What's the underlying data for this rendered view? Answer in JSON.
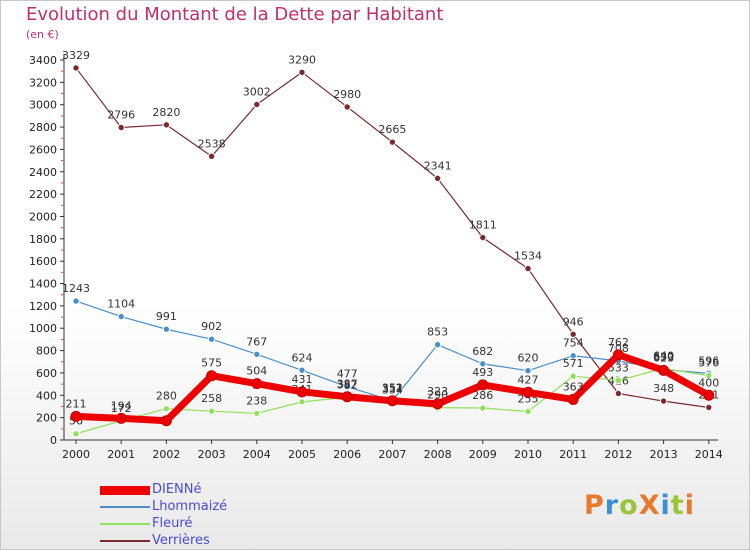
{
  "header": {
    "title": "Evolution du Montant de la Dette par Habitant",
    "subtitle": "(en €)"
  },
  "logo": {
    "text": "ProXiti",
    "colors": [
      "#e8792a",
      "#3a8fd6",
      "#9ac43a",
      "#e8792a",
      "#3a8fd6",
      "#9ac43a",
      "#e8792a"
    ]
  },
  "chart_data": {
    "type": "line",
    "title": "Evolution du Montant de la Dette par Habitant",
    "subtitle": "(en €)",
    "xlabel": "",
    "ylabel": "",
    "x": [
      "2000",
      "2001",
      "2002",
      "2003",
      "2004",
      "2005",
      "2006",
      "2007",
      "2008",
      "2009",
      "2010",
      "2011",
      "2012",
      "2013",
      "2014"
    ],
    "ylim": [
      0,
      3400
    ],
    "yticks": [
      0,
      200,
      400,
      600,
      800,
      1000,
      1200,
      1400,
      1600,
      1800,
      2000,
      2200,
      2400,
      2600,
      2800,
      3000,
      3200,
      3400
    ],
    "grid": false,
    "legend_position": "bottom-left",
    "series": [
      {
        "name": "Verrières",
        "color": "#7a2a2e",
        "width": 1.2,
        "values": [
          3329,
          2796,
          2820,
          2538,
          3002,
          3290,
          2980,
          2665,
          2341,
          1811,
          1534,
          946,
          416,
          348,
          291
        ],
        "labels": [
          "3329",
          "2796",
          "2820",
          "2538",
          "3002",
          "3290",
          "2980",
          "2665",
          "2341",
          "1811",
          "1534",
          "946",
          "416",
          "348",
          "291"
        ]
      },
      {
        "name": "Lhommaizé",
        "color": "#4a90c8",
        "width": 1.2,
        "values": [
          1243,
          1104,
          991,
          902,
          767,
          624,
          477,
          352,
          853,
          682,
          620,
          754,
          708,
          630,
          596
        ],
        "labels": [
          "1243",
          "1104",
          "991",
          "902",
          "767",
          "624",
          "477",
          "352",
          "853",
          "682",
          "620",
          "754",
          "708",
          "630",
          "596"
        ]
      },
      {
        "name": "Fleuré",
        "color": "#8fe05a",
        "width": 1.2,
        "values": [
          56,
          172,
          280,
          258,
          238,
          341,
          382,
          334,
          290,
          286,
          255,
          571,
          533,
          640,
          576
        ],
        "labels": [
          "56",
          "172",
          "280",
          "258",
          "238",
          "341",
          "382",
          "334",
          "290",
          "286",
          "255",
          "571",
          "533",
          "640",
          "576"
        ]
      },
      {
        "name": "DIENNé",
        "color": "#ee0000",
        "width": 7,
        "values": [
          211,
          194,
          172,
          575,
          504,
          431,
          387,
          351,
          323,
          493,
          427,
          363,
          762,
          623,
          400
        ],
        "labels": [
          "211",
          "194",
          "",
          "575",
          "504",
          "431",
          "387",
          "351",
          "323",
          "493",
          "427",
          "363",
          "762",
          "623",
          "400"
        ]
      }
    ]
  },
  "legend": {
    "items": [
      {
        "label": "DIENNé",
        "color": "#ee0000",
        "width": 9
      },
      {
        "label": "Lhommaizé",
        "color": "#4a90c8",
        "width": 2
      },
      {
        "label": "Fleuré",
        "color": "#8fe05a",
        "width": 2
      },
      {
        "label": "Verrières",
        "color": "#7a2a2e",
        "width": 2
      }
    ]
  }
}
